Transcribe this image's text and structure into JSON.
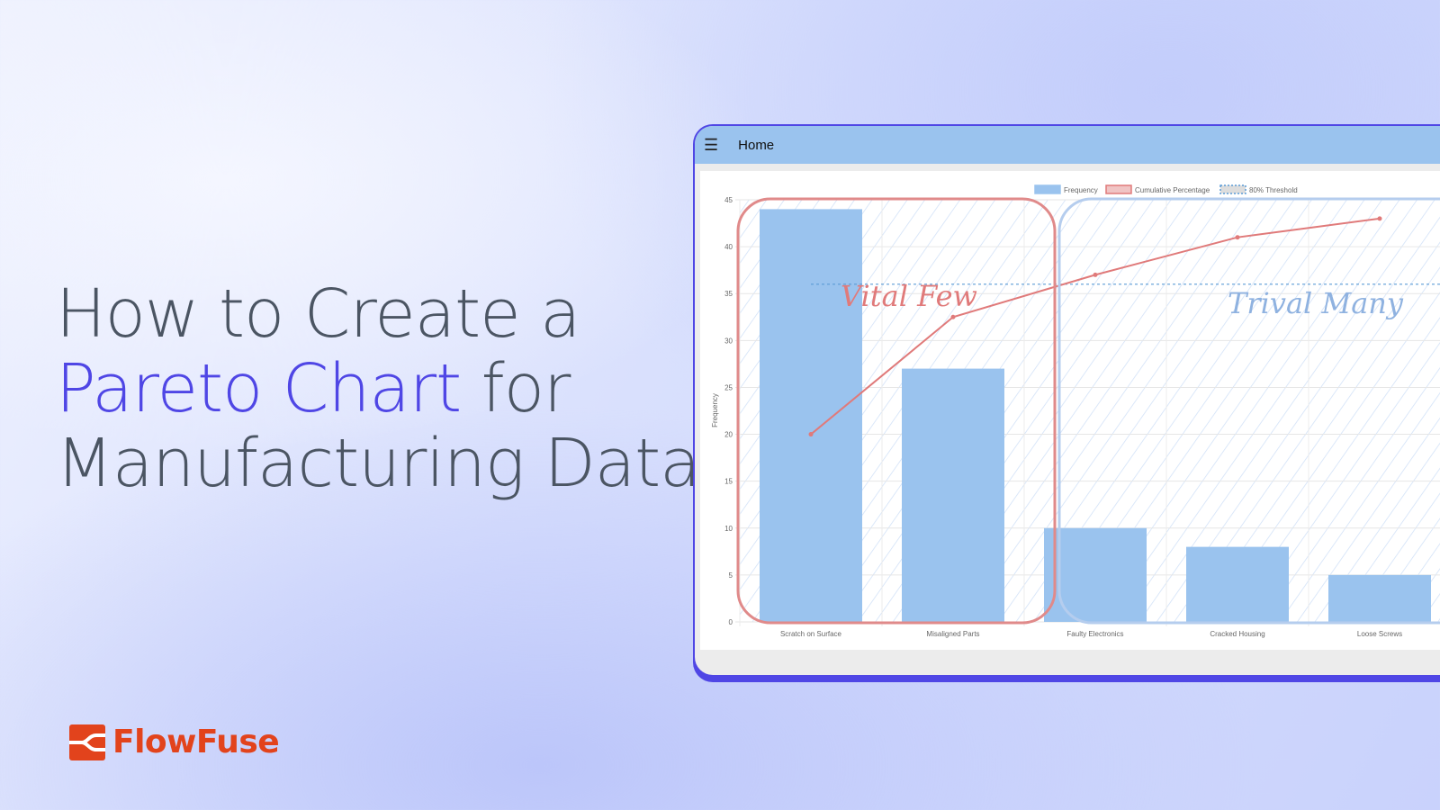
{
  "headline": {
    "line1": "How to Create a",
    "highlight": "Pareto Chart",
    "line2_rest": " for",
    "line3": "Manufacturing Data"
  },
  "brand": {
    "name": "FlowFuse",
    "color": "#e2431c"
  },
  "app": {
    "title": "Home",
    "menu_icon": "hamburger-icon"
  },
  "chart_data": {
    "type": "bar",
    "categories": [
      "Scratch on Surface",
      "Misaligned Parts",
      "Faulty Electronics",
      "Cracked Housing",
      "Loose Screws"
    ],
    "series": [
      {
        "name": "Frequency",
        "type": "bar",
        "values": [
          44,
          27,
          10,
          8,
          5
        ],
        "color": "#9ac3ee"
      },
      {
        "name": "Cumulative Percentage",
        "type": "line",
        "values": [
          20,
          32.5,
          37,
          41,
          43
        ],
        "color": "#e07a7a"
      },
      {
        "name": "80% Threshold",
        "type": "line",
        "values": [
          36,
          36,
          36,
          36,
          36
        ],
        "color": "#5b9bd5"
      }
    ],
    "ylabel": "Frequency",
    "ylim": [
      0,
      45
    ],
    "yticks": [
      0,
      5,
      10,
      15,
      20,
      25,
      30,
      35,
      40,
      45
    ],
    "grid": true,
    "legend": "top",
    "annotations": [
      {
        "text": "Vital Few",
        "color": "#e07a7a"
      },
      {
        "text": "Trival Many",
        "color": "#8fb2e0"
      }
    ]
  }
}
